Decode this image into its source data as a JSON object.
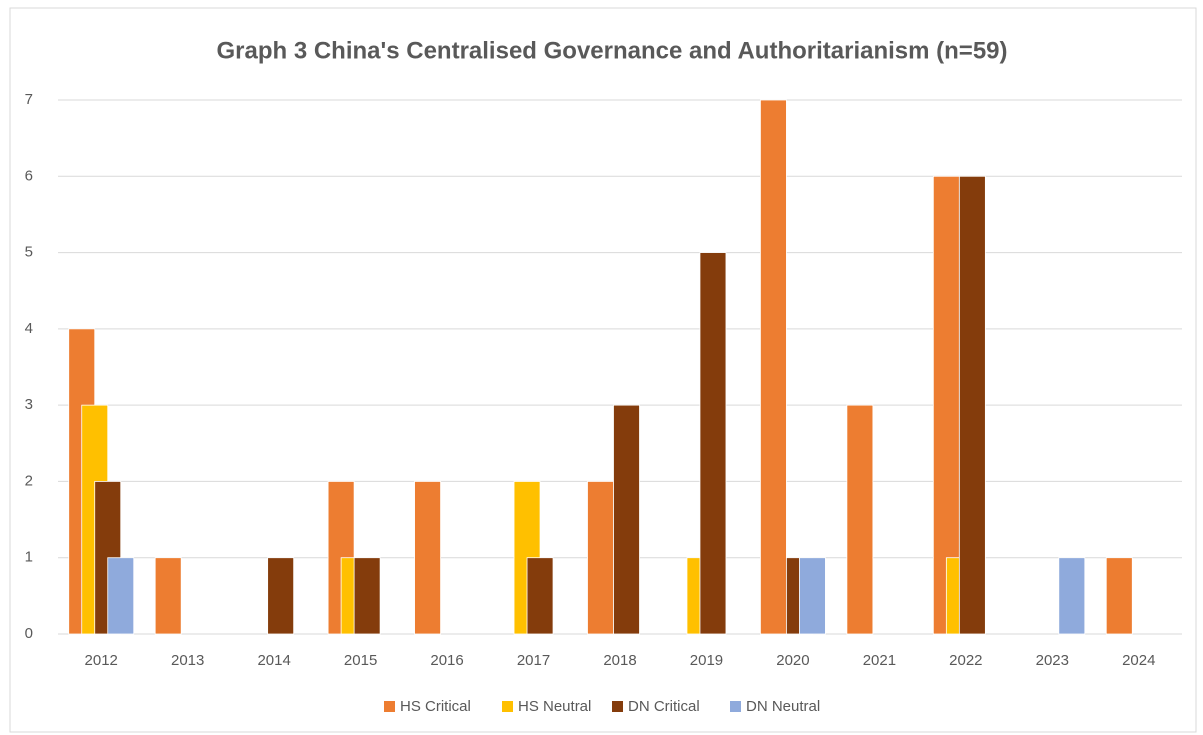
{
  "chart_data": {
    "type": "bar",
    "title": "Graph 3 China's Centralised Governance and Authoritarianism (n=59)",
    "categories": [
      "2012",
      "2013",
      "2014",
      "2015",
      "2016",
      "2017",
      "2018",
      "2019",
      "2020",
      "2021",
      "2022",
      "2023",
      "2024"
    ],
    "series": [
      {
        "name": "HS Critical",
        "color": "#ed7d31",
        "values": [
          4,
          1,
          0,
          2,
          2,
          0,
          2,
          0,
          7,
          3,
          6,
          0,
          1
        ]
      },
      {
        "name": "HS Neutral",
        "color": "#ffc000",
        "values": [
          3,
          0,
          0,
          1,
          0,
          2,
          0,
          1,
          0,
          0,
          1,
          0,
          0
        ]
      },
      {
        "name": "DN Critical",
        "color": "#843c0c",
        "values": [
          2,
          0,
          1,
          1,
          0,
          1,
          3,
          5,
          1,
          0,
          6,
          0,
          0
        ]
      },
      {
        "name": "DN Neutral",
        "color": "#8faadc",
        "values": [
          1,
          0,
          0,
          0,
          0,
          0,
          0,
          0,
          1,
          0,
          0,
          1,
          0
        ]
      }
    ],
    "ylim": [
      0,
      7
    ],
    "yticks": [
      0,
      1,
      2,
      3,
      4,
      5,
      6,
      7
    ],
    "grid": true,
    "legend": "bottom"
  }
}
